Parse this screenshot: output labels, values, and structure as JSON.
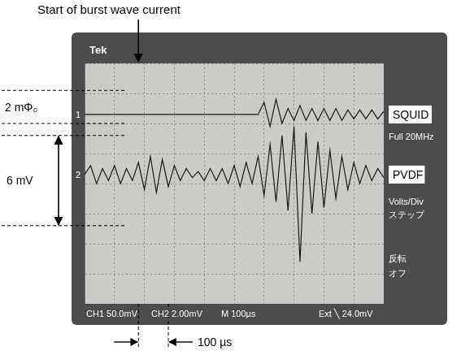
{
  "chart_data": {
    "type": "line",
    "x": [
      0,
      20,
      40,
      60,
      80,
      100,
      120,
      140,
      160,
      180,
      200,
      220,
      240,
      260,
      280,
      300,
      320,
      340,
      360,
      380,
      400,
      420,
      440,
      460,
      480,
      500,
      520,
      540,
      560,
      580,
      600,
      620,
      640,
      660,
      680,
      700,
      720,
      740,
      760,
      780,
      800,
      820,
      840,
      860,
      880,
      900,
      920,
      940,
      960,
      980,
      1000
    ],
    "series": [
      {
        "name": "SQUID",
        "channel": "1",
        "color": "#1a1a1a",
        "values": [
          2.3,
          2.3,
          2.3,
          2.3,
          2.3,
          2.3,
          2.3,
          2.3,
          2.3,
          2.3,
          2.3,
          2.3,
          2.3,
          2.3,
          2.3,
          2.3,
          2.3,
          2.3,
          2.3,
          2.3,
          2.3,
          2.3,
          2.3,
          2.3,
          2.3,
          2.3,
          2.3,
          2.3,
          2.3,
          2.3,
          2.7,
          1.9,
          2.8,
          2.0,
          2.5,
          2.1,
          2.6,
          2.1,
          2.5,
          2.1,
          2.5,
          2.1,
          2.5,
          2.1,
          2.45,
          2.15,
          2.45,
          2.15,
          2.45,
          2.15,
          2.4
        ]
      },
      {
        "name": "PVDF",
        "channel": "2",
        "color": "#1a1a1a",
        "values": [
          0.3,
          0.6,
          0.0,
          0.5,
          0.1,
          0.6,
          0.0,
          0.5,
          0.1,
          0.7,
          -0.2,
          0.9,
          -0.3,
          0.8,
          -0.1,
          0.6,
          0.1,
          0.5,
          0.2,
          0.4,
          0.1,
          0.5,
          0.1,
          0.5,
          0.0,
          0.6,
          -0.1,
          0.7,
          0.0,
          0.9,
          -0.4,
          1.3,
          -0.6,
          1.6,
          -0.9,
          1.9,
          -2.6,
          1.7,
          -1.0,
          1.4,
          -0.8,
          1.1,
          -0.5,
          0.9,
          -0.2,
          0.7,
          0.0,
          0.6,
          0.1,
          0.5,
          0.2
        ]
      }
    ],
    "xlim": [
      0,
      1000
    ],
    "xticks": [
      0,
      100,
      200,
      300,
      400,
      500,
      600,
      700,
      800,
      900,
      1000
    ],
    "ylim": [
      -4,
      4
    ],
    "yticks": [
      -4,
      -3,
      -2,
      -1,
      0,
      1,
      2,
      3,
      4
    ],
    "grid": true,
    "tick_labels": false,
    "annotations": [
      {
        "text": "Start of burst wave current",
        "x": 180
      }
    ],
    "scale_bars": [
      {
        "label": "2 mΦ₀",
        "axis": "y",
        "from": 2.0,
        "to": 3.1
      },
      {
        "label": "6 mV",
        "axis": "y",
        "from": -1.4,
        "to": 1.6
      },
      {
        "label": "100 µs",
        "axis": "x",
        "from": 180,
        "to": 280
      }
    ],
    "scope_text": {
      "brand": "Tek",
      "readout": [
        "CH1 50.0mV",
        "CH2 2.00mV",
        "M 100µs",
        "Ext ╲ 24.0mV"
      ],
      "menu": [
        "Full 20MHz",
        "Volts/Div",
        "ステップ",
        "反転",
        "オフ"
      ]
    }
  }
}
